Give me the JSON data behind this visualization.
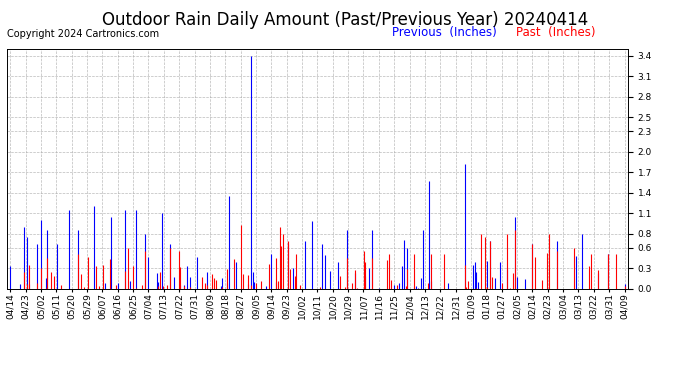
{
  "title": "Outdoor Rain Daily Amount (Past/Previous Year) 20240414",
  "copyright": "Copyright 2024 Cartronics.com",
  "legend_previous": "Previous",
  "legend_past": "Past",
  "legend_units": "(Inches)",
  "color_previous": "blue",
  "color_past": "red",
  "color_background": "white",
  "yticks": [
    0.0,
    0.3,
    0.6,
    0.8,
    1.1,
    1.4,
    1.7,
    2.0,
    2.3,
    2.5,
    2.8,
    3.1,
    3.4
  ],
  "ylim": [
    0.0,
    3.5
  ],
  "x_labels": [
    "04/14",
    "04/23",
    "05/02",
    "05/11",
    "05/20",
    "05/29",
    "06/07",
    "06/16",
    "06/25",
    "07/04",
    "07/13",
    "07/22",
    "07/31",
    "08/09",
    "08/18",
    "08/27",
    "09/05",
    "09/14",
    "09/23",
    "10/02",
    "10/11",
    "10/20",
    "10/29",
    "11/07",
    "11/16",
    "11/25",
    "12/04",
    "12/13",
    "12/22",
    "12/31",
    "01/09",
    "01/18",
    "01/27",
    "02/05",
    "02/14",
    "02/23",
    "03/04",
    "03/13",
    "03/22",
    "03/31",
    "04/09"
  ],
  "num_points": 366,
  "title_fontsize": 12,
  "copyright_fontsize": 7,
  "tick_fontsize": 6.5,
  "legend_fontsize": 8.5
}
